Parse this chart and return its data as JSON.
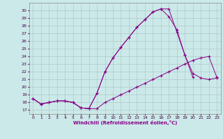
{
  "xlabel": "Windchill (Refroidissement éolien,°C)",
  "background_color": "#cce9e9",
  "grid_color": "#b0c8c8",
  "line_color": "#880088",
  "xlim": [
    -0.5,
    23.5
  ],
  "ylim": [
    16.5,
    31.0
  ],
  "xticks": [
    0,
    1,
    2,
    3,
    4,
    5,
    6,
    7,
    8,
    9,
    10,
    11,
    12,
    13,
    14,
    15,
    16,
    17,
    18,
    19,
    20,
    21,
    22,
    23
  ],
  "yticks": [
    17,
    18,
    19,
    20,
    21,
    22,
    23,
    24,
    25,
    26,
    27,
    28,
    29,
    30
  ],
  "line1_x": [
    0,
    1,
    2,
    3,
    4,
    5,
    6,
    7,
    8,
    9,
    10,
    11,
    12,
    13,
    14,
    15,
    16,
    17,
    18,
    19,
    20,
    21,
    22,
    23
  ],
  "line1_y": [
    18.5,
    17.8,
    18.0,
    18.2,
    18.2,
    18.0,
    17.3,
    17.2,
    17.2,
    18.0,
    18.5,
    19.0,
    19.5,
    20.0,
    20.5,
    21.0,
    21.5,
    22.0,
    22.5,
    23.0,
    23.5,
    23.8,
    24.0,
    21.3
  ],
  "line2_x": [
    0,
    1,
    2,
    3,
    4,
    5,
    6,
    7,
    8,
    9,
    10,
    11,
    12,
    13,
    14,
    15,
    16,
    17,
    18,
    19,
    20,
    21,
    22,
    23
  ],
  "line2_y": [
    18.5,
    17.8,
    18.0,
    18.2,
    18.2,
    18.0,
    17.3,
    17.2,
    19.2,
    22.0,
    23.8,
    25.2,
    26.5,
    27.8,
    28.8,
    29.8,
    30.2,
    30.2,
    27.2,
    24.2,
    21.8,
    21.2,
    21.0,
    21.2
  ],
  "line3_x": [
    0,
    1,
    2,
    3,
    4,
    5,
    6,
    7,
    8,
    9,
    10,
    11,
    12,
    13,
    14,
    15,
    16,
    17,
    18,
    19,
    20
  ],
  "line3_y": [
    18.5,
    17.8,
    18.0,
    18.2,
    18.2,
    18.0,
    17.3,
    17.2,
    19.2,
    22.0,
    23.8,
    25.2,
    26.5,
    27.8,
    28.8,
    29.8,
    30.2,
    29.2,
    27.5,
    24.2,
    21.3
  ]
}
